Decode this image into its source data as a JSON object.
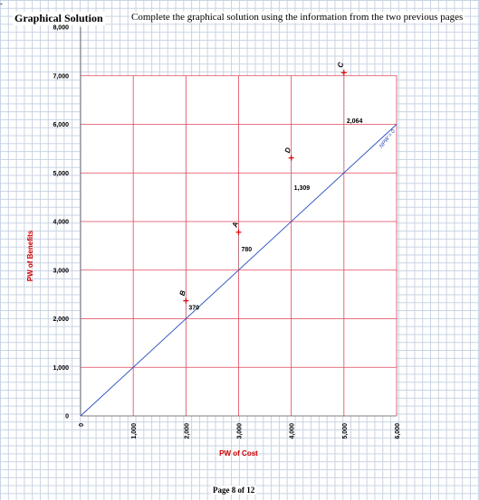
{
  "header": {
    "corner_mark": "-",
    "title": "Graphical Solution",
    "instruction": "Complete the graphical solution using the information from the two previous pages"
  },
  "footer": {
    "page": "Page 8 of  12"
  },
  "colors": {
    "plot_grid": "#e0455a",
    "reference_line": "#2a4fc0",
    "alternative_marker": "#e00000",
    "axis_title": "#cc0000",
    "sheet_grid": "#c9d3e3"
  },
  "chart_data": {
    "type": "scatter",
    "title": "",
    "xlabel": "PW of Cost",
    "ylabel": "PW of Benefits",
    "xlim": [
      0,
      6000
    ],
    "ylim": [
      0,
      8000
    ],
    "grid": true,
    "x_ticks": [
      0,
      1000,
      2000,
      3000,
      4000,
      5000,
      6000
    ],
    "x_tick_labels": [
      "0",
      "1,000",
      "2,000",
      "3,000",
      "4,000",
      "5,000",
      "6,000"
    ],
    "y_ticks": [
      0,
      1000,
      2000,
      3000,
      4000,
      5000,
      6000,
      7000,
      8000
    ],
    "y_tick_labels": [
      "0",
      "1,000",
      "2,000",
      "3,000",
      "4,000",
      "5,000",
      "6,000",
      "7,000",
      "8,000"
    ],
    "reference_line": {
      "label": "NPW = 0",
      "x": [
        0,
        6000
      ],
      "y": [
        0,
        6000
      ]
    },
    "points": [
      {
        "label": "B",
        "x": 2000,
        "y": 2370,
        "npw": "370"
      },
      {
        "label": "A",
        "x": 3000,
        "y": 3780,
        "npw": "780"
      },
      {
        "label": "D",
        "x": 4000,
        "y": 5309,
        "npw": "1,309"
      },
      {
        "label": "C",
        "x": 5000,
        "y": 7064,
        "npw": "2,064"
      }
    ]
  }
}
